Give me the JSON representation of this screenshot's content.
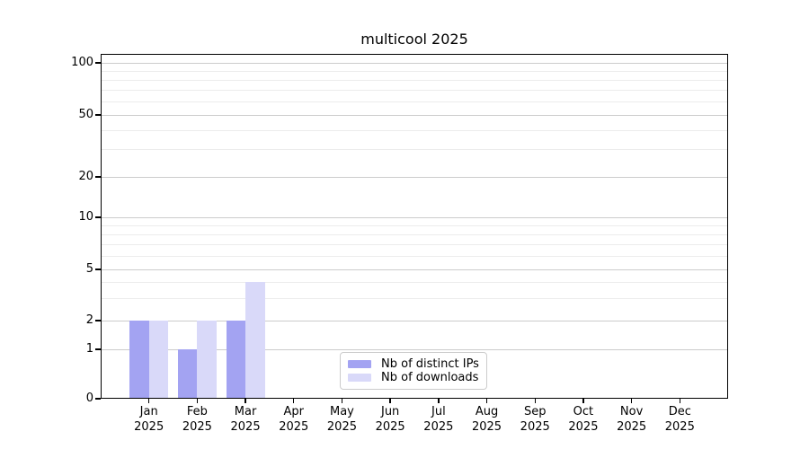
{
  "title": "multicool 2025",
  "chart_data": {
    "type": "bar",
    "title": "multicool 2025",
    "categories": [
      "Jan 2025",
      "Feb 2025",
      "Mar 2025",
      "Apr 2025",
      "May 2025",
      "Jun 2025",
      "Jul 2025",
      "Aug 2025",
      "Sep 2025",
      "Oct 2025",
      "Nov 2025",
      "Dec 2025"
    ],
    "series": [
      {
        "name": "Nb of distinct IPs",
        "color": "#a3a3f2",
        "values": [
          2,
          1,
          2,
          0,
          0,
          0,
          0,
          0,
          0,
          0,
          0,
          0
        ]
      },
      {
        "name": "Nb of downloads",
        "color": "#d9d9f9",
        "values": [
          2,
          2,
          4,
          0,
          0,
          0,
          0,
          0,
          0,
          0,
          0,
          0
        ]
      }
    ],
    "xlabel": "",
    "ylabel": "",
    "yscale": "symlog",
    "ylim": [
      0,
      115
    ],
    "y_ticks": [
      0,
      1,
      2,
      5,
      10,
      20,
      50,
      100
    ],
    "y_minor_ticks": [
      3,
      4,
      6,
      7,
      8,
      9,
      30,
      40,
      60,
      70,
      80,
      90
    ],
    "grid": true,
    "legend_position": "lower center"
  }
}
